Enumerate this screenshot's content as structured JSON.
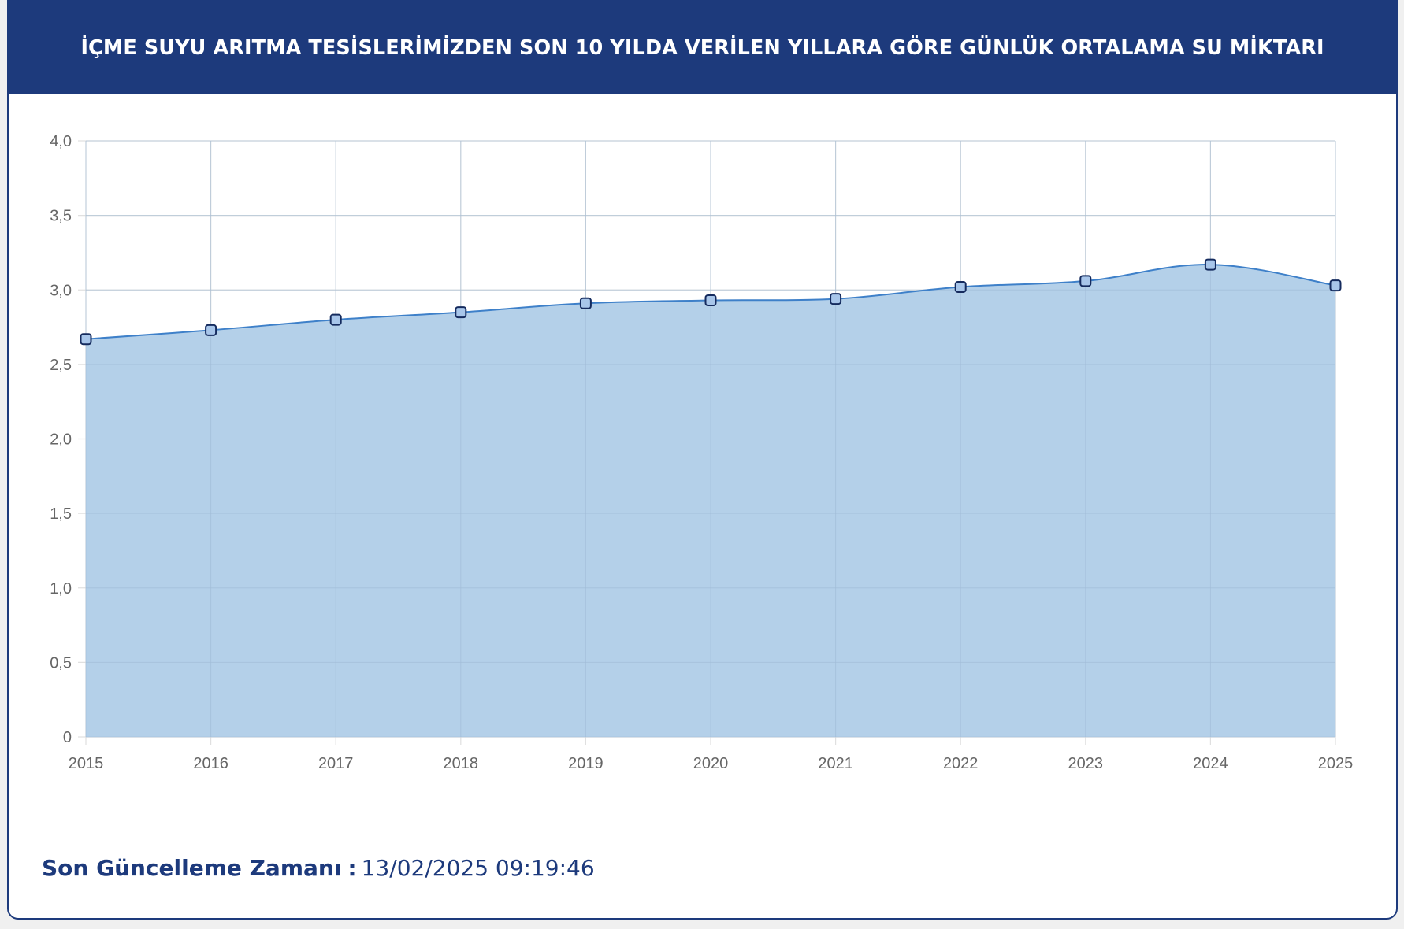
{
  "header": {
    "title": "İÇME SUYU ARITMA TESİSLERİMİZDEN SON 10 YILDA VERİLEN YILLARA GÖRE GÜNLÜK ORTALAMA SU MİKTARI"
  },
  "chart_data": {
    "type": "area",
    "title": "",
    "xlabel": "",
    "ylabel": "",
    "categories": [
      "2015",
      "2016",
      "2017",
      "2018",
      "2019",
      "2020",
      "2021",
      "2022",
      "2023",
      "2024",
      "2025"
    ],
    "series": [
      {
        "values": [
          2.67,
          2.73,
          2.8,
          2.85,
          2.91,
          2.93,
          2.94,
          3.02,
          3.06,
          3.17,
          3.03
        ]
      }
    ],
    "ylim": [
      0,
      4
    ],
    "yticks": [
      "0",
      "0,5",
      "1,0",
      "1,5",
      "2,0",
      "2,5",
      "3,0",
      "3,5",
      "4,0"
    ],
    "grid": true,
    "colors": {
      "line": "#3e80c9",
      "fill": "#b0cde8",
      "marker_fill": "#a8c6ea",
      "marker_stroke": "#152b5e",
      "grid": "#e0e0e0",
      "tick_label": "#666666"
    }
  },
  "footer": {
    "label": "Son Güncelleme Zamanı",
    "separator": ":",
    "value": "13/02/2025 09:19:46"
  }
}
